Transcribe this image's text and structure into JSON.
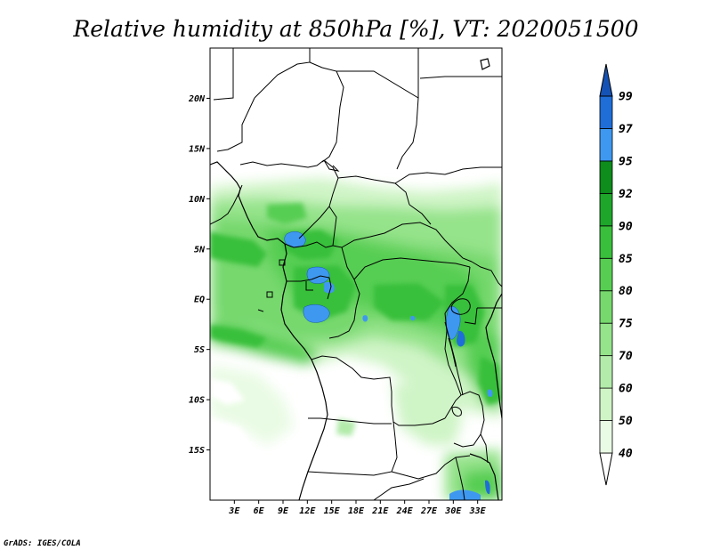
{
  "title": "Relative humidity at 850hPa [%], VT: 2020051500",
  "credit": "GrADS: IGES/COLA",
  "map": {
    "lon_range": [
      0,
      36
    ],
    "lat_range": [
      -20,
      25
    ],
    "lat_ticks": [
      "20N",
      "15N",
      "10N",
      "5N",
      "EQ",
      "5S",
      "10S",
      "15S"
    ],
    "lon_ticks": [
      "3E",
      "6E",
      "9E",
      "12E",
      "15E",
      "18E",
      "21E",
      "24E",
      "27E",
      "30E",
      "33E"
    ]
  },
  "colorbar": {
    "levels": [
      "40",
      "50",
      "60",
      "70",
      "75",
      "80",
      "85",
      "90",
      "92",
      "95",
      "97",
      "99"
    ],
    "colors": [
      "#ffffff",
      "#e9fbe4",
      "#cff4c6",
      "#b2ebaa",
      "#95e38b",
      "#76d86d",
      "#57ce52",
      "#39bf3b",
      "#1ea62b",
      "#0e8c1c",
      "#3f98f0",
      "#1f6ed8",
      "#1552b5"
    ]
  }
}
